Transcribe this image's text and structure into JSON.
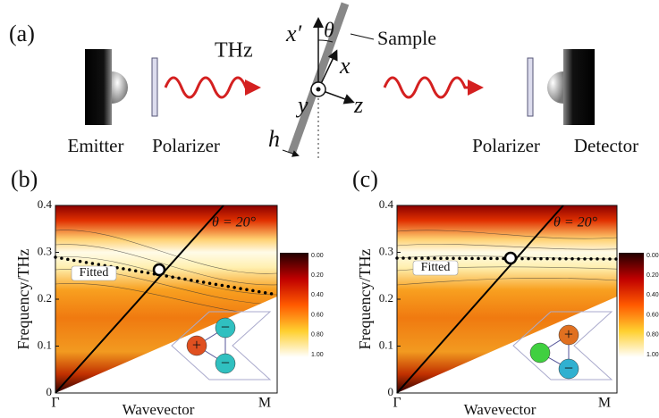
{
  "panel_a": {
    "label": "(a)",
    "thz": "THz",
    "sample": "Sample",
    "axes": {
      "x_prime": "x′",
      "theta": "θ",
      "x": "x",
      "y": "y",
      "z": "z",
      "h": "h"
    },
    "devices": [
      "Emitter",
      "Polarizer",
      "Polarizer",
      "Detector"
    ]
  },
  "panels": [
    {
      "label": "(b)",
      "y_label": "Frequency/THz",
      "x_label": "Wavevector",
      "y_ticks": [
        "0",
        "0.1",
        "0.2",
        "0.3",
        "0.4"
      ],
      "x_ticks": [
        "Γ",
        "M"
      ],
      "angle_label": "θ = 20°",
      "fit_label": "Fitted",
      "colorbar_ticks": [
        "0.00",
        "0.20",
        "0.40",
        "0.60",
        "0.80",
        "1.00"
      ],
      "inset_signs": [
        "+",
        "−",
        "−"
      ]
    },
    {
      "label": "(c)",
      "y_label": "Frequency/THz",
      "x_label": "Wavevector",
      "y_ticks": [
        "0",
        "0.1",
        "0.2",
        "0.3",
        "0.4"
      ],
      "x_ticks": [
        "Γ",
        "M"
      ],
      "angle_label": "θ = 20°",
      "fit_label": "Fitted",
      "colorbar_ticks": [
        "0.00",
        "0.20",
        "0.40",
        "0.60",
        "0.80",
        "1.00"
      ],
      "inset_signs": [
        "+",
        "−"
      ]
    }
  ]
}
